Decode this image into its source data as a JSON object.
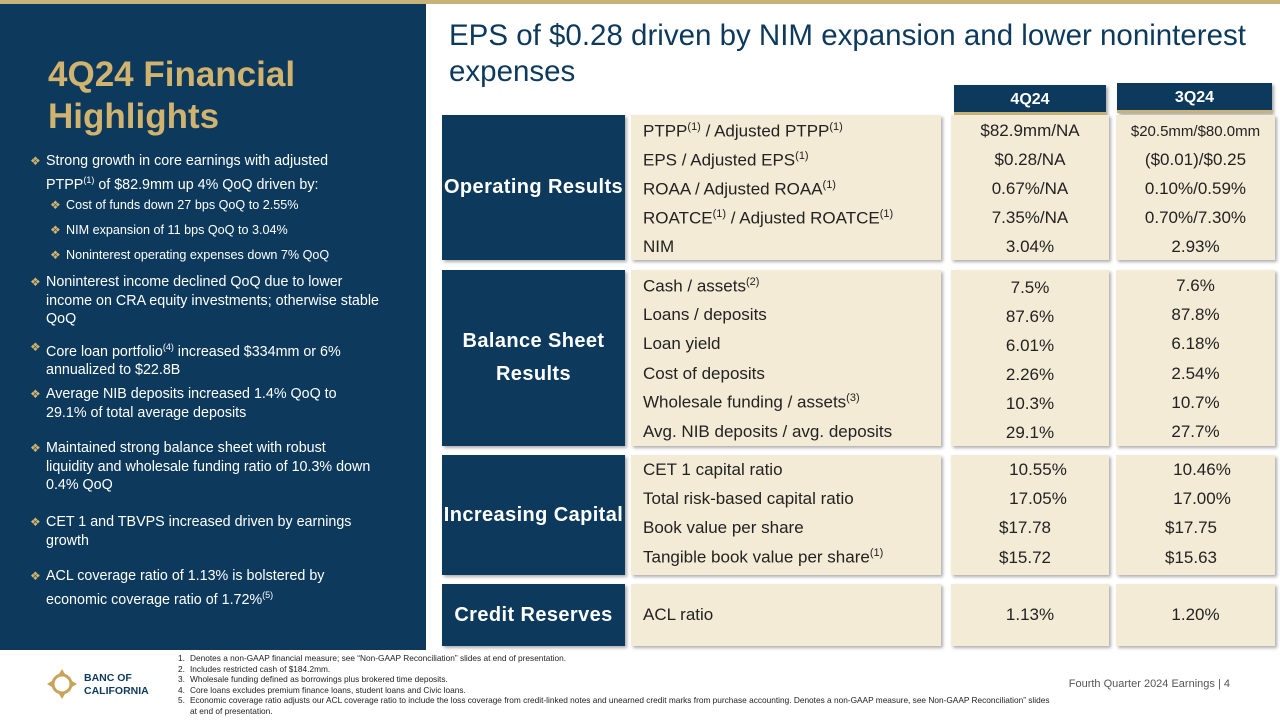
{
  "left_panel": {
    "title": "4Q24 Financial Highlights",
    "bullets": [
      {
        "pre": "Strong growth in core earnings with adjusted PTPP",
        "sup": "(1)",
        "post": " of $82.9mm up 4% QoQ driven by:"
      },
      {
        "text": "Cost of funds down 27 bps QoQ to 2.55%"
      },
      {
        "text": "NIM expansion of 11 bps QoQ to 3.04%"
      },
      {
        "text": "Noninterest operating expenses down 7% QoQ"
      },
      {
        "text": "Noninterest income declined QoQ due to lower income on CRA equity investments; otherwise stable QoQ"
      },
      {
        "pre": "Core loan portfolio",
        "sup": "(4)",
        "post": " increased $334mm or 6% annualized to $22.8B"
      },
      {
        "text": "Average NIB deposits increased 1.4% QoQ to 29.1% of total average deposits"
      },
      {
        "text": "Maintained strong balance sheet with robust liquidity and wholesale funding ratio of 10.3% down 0.4% QoQ"
      },
      {
        "text": "CET 1 and TBVPS increased driven by earnings growth"
      },
      {
        "pre": "ACL coverage ratio of 1.13% is bolstered by economic coverage ratio of 1.72%",
        "sup": "(5)"
      }
    ]
  },
  "main_title": "EPS of $0.28 driven by NIM expansion and lower noninterest expenses",
  "column_headers": [
    "4Q24",
    "3Q24"
  ],
  "sections": [
    {
      "label": "Operating Results",
      "rows": [
        {
          "label": "PTPP",
          "sup1": "(1)",
          "label2": " / Adjusted PTPP",
          "sup2": "(1)",
          "q4": "$82.9mm/NA",
          "q3": "$20.5mm/$80.0mm"
        },
        {
          "label": "EPS / Adjusted EPS",
          "sup1": "(1)",
          "q4": "$0.28/NA",
          "q3": "($0.01)/$0.25"
        },
        {
          "label": "ROAA / Adjusted ROAA",
          "sup1": "(1)",
          "q4": "0.67%/NA",
          "q3": "0.10%/0.59%"
        },
        {
          "label": "ROATCE",
          "sup1": "(1)",
          "label2": " / Adjusted ROATCE",
          "sup2": "(1)",
          "q4": "7.35%/NA",
          "q3": "0.70%/7.30%"
        },
        {
          "label": "NIM",
          "q4": "3.04%",
          "q3": "2.93%"
        }
      ]
    },
    {
      "label": "Balance Sheet Results",
      "rows": [
        {
          "label": "Cash / assets",
          "sup1": "(2)",
          "q4": "7.5%",
          "q3": "7.6%"
        },
        {
          "label": "Loans / deposits",
          "q4": "87.6%",
          "q3": "87.8%"
        },
        {
          "label": "Loan yield",
          "q4": "6.01%",
          "q3": "6.18%"
        },
        {
          "label": "Cost of deposits",
          "q4": "2.26%",
          "q3": "2.54%"
        },
        {
          "label": "Wholesale funding / assets",
          "sup1": "(3)",
          "q4": "10.3%",
          "q3": "10.7%"
        },
        {
          "label": "Avg. NIB deposits / avg. deposits",
          "q4": "29.1%",
          "q3": "27.7%"
        }
      ]
    },
    {
      "label": "Increasing Capital",
      "rows": [
        {
          "label": "CET 1 capital ratio",
          "q4": "10.55%",
          "q3": "10.46%"
        },
        {
          "label": "Total risk-based capital ratio",
          "q4": "17.05%",
          "q3": "17.00%"
        },
        {
          "label": "Book value per share",
          "q4": "$17.78",
          "q3": "$17.75"
        },
        {
          "label": "Tangible book value per share",
          "sup1": "(1)",
          "q4": "$15.72",
          "q3": "$15.63"
        }
      ]
    },
    {
      "label": "Credit Reserves",
      "rows": [
        {
          "label": "ACL ratio",
          "q4": "1.13%",
          "q3": "1.20%"
        }
      ]
    }
  ],
  "footnotes": [
    "Denotes a non-GAAP financial measure; see “Non-GAAP Reconciliation” slides at end of presentation.",
    "Includes restricted cash of $184.2mm.",
    "Wholesale funding defined as borrowings plus brokered time deposits.",
    "Core loans excludes premium finance loans, student loans and Civic loans.",
    "Economic coverage ratio adjusts our ACL coverage ratio to include the loss coverage from credit-linked notes and unearned credit marks from purchase accounting. Denotes a non-GAAP measure, see Non-GAAP Reconciliation” slides at end of presentation."
  ],
  "footer": {
    "logo_text_line1": "BANC OF",
    "logo_text_line2": "CALIFORNIA",
    "right_text": "Fourth Quarter 2024 Earnings",
    "separator": "|",
    "page_number": "4"
  },
  "colors": {
    "navy": "#0d3a5c",
    "gold": "#d0b36e",
    "cream": "#f4ebd6"
  }
}
